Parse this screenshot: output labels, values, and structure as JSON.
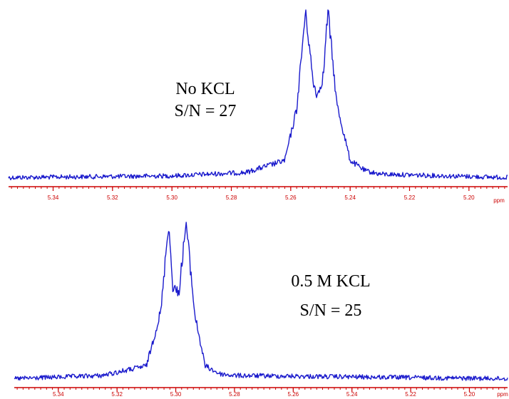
{
  "colors": {
    "spectrum": "#1a1acc",
    "axis": "#cc0000",
    "text": "#000000"
  },
  "chart_data": [
    {
      "type": "line",
      "title": "",
      "annotations": [
        "No KCL",
        "S/N = 27"
      ],
      "xlabel": "ppm",
      "x_reversed": true,
      "xlim": [
        5.355,
        5.187
      ],
      "ylim": [
        0,
        1
      ],
      "xticks": [
        5.34,
        5.32,
        5.3,
        5.28,
        5.26,
        5.24,
        5.22,
        5.2
      ],
      "xtick_labels": [
        "5.34",
        "5.32",
        "5.30",
        "5.28",
        "5.26",
        "5.24",
        "5.22",
        "5.20"
      ],
      "grid": false,
      "series": [
        {
          "x": [
            5.355,
            5.3,
            5.275,
            5.262,
            5.258,
            5.255,
            5.2525,
            5.251,
            5.249,
            5.2475,
            5.2445,
            5.24,
            5.235,
            5.23,
            5.187
          ],
          "y": [
            0.02,
            0.03,
            0.05,
            0.12,
            0.42,
            1.0,
            0.58,
            0.5,
            0.62,
            1.0,
            0.45,
            0.12,
            0.06,
            0.04,
            0.02
          ]
        }
      ]
    },
    {
      "type": "line",
      "title": "",
      "annotations": [
        "0.5 M KCL",
        "S/N = 25"
      ],
      "xlabel": "ppm",
      "x_reversed": true,
      "xlim": [
        5.355,
        5.187
      ],
      "ylim": [
        0,
        1
      ],
      "xticks": [
        5.34,
        5.32,
        5.3,
        5.28,
        5.26,
        5.24,
        5.22,
        5.2
      ],
      "xtick_labels": [
        "5.34",
        "5.32",
        "5.30",
        "5.28",
        "5.26",
        "5.24",
        "5.22",
        "5.20"
      ],
      "grid": false,
      "series": [
        {
          "x": [
            5.355,
            5.325,
            5.31,
            5.305,
            5.3025,
            5.301,
            5.299,
            5.2965,
            5.2935,
            5.29,
            5.285,
            5.28,
            5.187
          ],
          "y": [
            0.02,
            0.04,
            0.1,
            0.45,
            1.0,
            0.6,
            0.55,
            1.0,
            0.42,
            0.1,
            0.05,
            0.04,
            0.02
          ]
        }
      ]
    }
  ]
}
